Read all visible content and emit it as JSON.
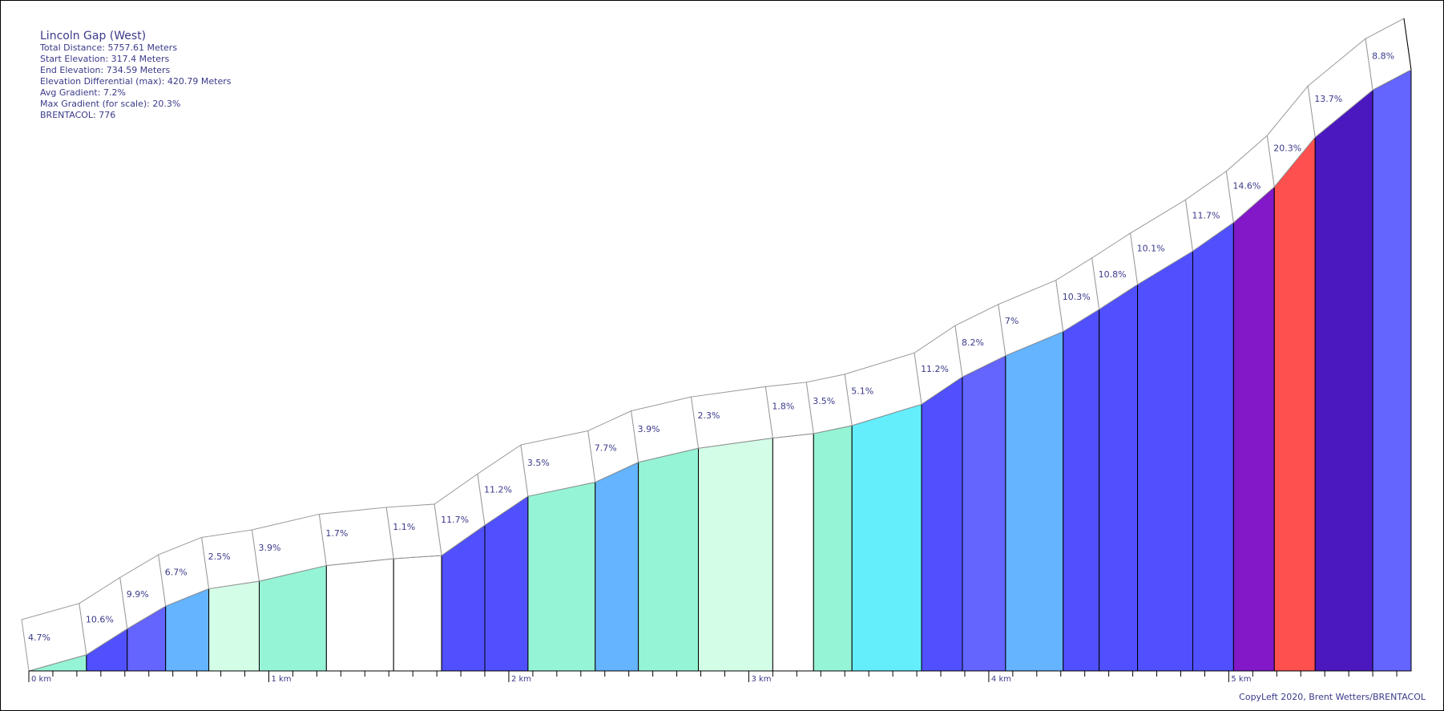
{
  "info": {
    "title": "Lincoln Gap (West)",
    "total_distance": "Total Distance: 5757.61 Meters",
    "start_elevation": "Start Elevation: 317.4 Meters",
    "end_elevation": "End Elevation: 734.59 Meters",
    "elevation_differential": "Elevation Differential (max): 420.79 Meters",
    "avg_gradient": "Avg Gradient: 7.2%",
    "max_gradient": "Max Gradient (for scale): 20.3%",
    "brentacol": "BRENTACOL: 776"
  },
  "credit": "CopyLeft 2020, Brent Wetters/BRENTACOL",
  "chart_data": {
    "type": "area",
    "x_unit": "km",
    "xlim": [
      0,
      5.76
    ],
    "ylim": [
      317.4,
      734.59
    ],
    "x_ticks": [
      0,
      1,
      2,
      3,
      4,
      5
    ],
    "x_tick_labels": [
      "0 km",
      "1 km",
      "2 km",
      "3 km",
      "4 km",
      "5 km"
    ],
    "segments": [
      {
        "start_km": 0.0,
        "end_km": 0.24,
        "gradient": 4.7,
        "label": "4.7%",
        "color": "#96f4d6"
      },
      {
        "start_km": 0.24,
        "end_km": 0.41,
        "gradient": 10.6,
        "label": "10.6%",
        "color": "#5050ff"
      },
      {
        "start_km": 0.41,
        "end_km": 0.57,
        "gradient": 9.9,
        "label": "9.9%",
        "color": "#6464ff"
      },
      {
        "start_km": 0.57,
        "end_km": 0.75,
        "gradient": 6.7,
        "label": "6.7%",
        "color": "#64b4ff"
      },
      {
        "start_km": 0.75,
        "end_km": 0.96,
        "gradient": 2.5,
        "label": "2.5%",
        "color": "#d4fde8"
      },
      {
        "start_km": 0.96,
        "end_km": 1.24,
        "gradient": 3.9,
        "label": "3.9%",
        "color": "#96f4d6"
      },
      {
        "start_km": 1.24,
        "end_km": 1.52,
        "gradient": 1.7,
        "label": "1.7%",
        "color": "#ffffff"
      },
      {
        "start_km": 1.52,
        "end_km": 1.72,
        "gradient": 1.1,
        "label": "1.1%",
        "color": "#ffffff"
      },
      {
        "start_km": 1.72,
        "end_km": 1.9,
        "gradient": 11.7,
        "label": "11.7%",
        "color": "#5050ff"
      },
      {
        "start_km": 1.9,
        "end_km": 2.08,
        "gradient": 11.2,
        "label": "11.2%",
        "color": "#5050ff"
      },
      {
        "start_km": 2.08,
        "end_km": 2.36,
        "gradient": 3.5,
        "label": "3.5%",
        "color": "#96f4d6"
      },
      {
        "start_km": 2.36,
        "end_km": 2.54,
        "gradient": 7.7,
        "label": "7.7%",
        "color": "#64b4ff"
      },
      {
        "start_km": 2.54,
        "end_km": 2.79,
        "gradient": 3.9,
        "label": "3.9%",
        "color": "#96f4d6"
      },
      {
        "start_km": 2.79,
        "end_km": 3.1,
        "gradient": 2.3,
        "label": "2.3%",
        "color": "#d4fde8"
      },
      {
        "start_km": 3.1,
        "end_km": 3.27,
        "gradient": 1.8,
        "label": "1.8%",
        "color": "#ffffff"
      },
      {
        "start_km": 3.27,
        "end_km": 3.43,
        "gradient": 3.5,
        "label": "3.5%",
        "color": "#96f4d6"
      },
      {
        "start_km": 3.43,
        "end_km": 3.72,
        "gradient": 5.1,
        "label": "5.1%",
        "color": "#64eefc"
      },
      {
        "start_km": 3.72,
        "end_km": 3.89,
        "gradient": 11.2,
        "label": "11.2%",
        "color": "#5050ff"
      },
      {
        "start_km": 3.89,
        "end_km": 4.07,
        "gradient": 8.2,
        "label": "8.2%",
        "color": "#6464ff"
      },
      {
        "start_km": 4.07,
        "end_km": 4.31,
        "gradient": 7,
        "label": "7%",
        "color": "#64b4ff"
      },
      {
        "start_km": 4.31,
        "end_km": 4.46,
        "gradient": 10.3,
        "label": "10.3%",
        "color": "#5050ff"
      },
      {
        "start_km": 4.46,
        "end_km": 4.62,
        "gradient": 10.8,
        "label": "10.8%",
        "color": "#5050ff"
      },
      {
        "start_km": 4.62,
        "end_km": 4.85,
        "gradient": 10.1,
        "label": "10.1%",
        "color": "#5050ff"
      },
      {
        "start_km": 4.85,
        "end_km": 5.02,
        "gradient": 11.7,
        "label": "11.7%",
        "color": "#5050ff"
      },
      {
        "start_km": 5.02,
        "end_km": 5.19,
        "gradient": 14.6,
        "label": "14.6%",
        "color": "#8218c8"
      },
      {
        "start_km": 5.19,
        "end_km": 5.36,
        "gradient": 20.3,
        "label": "20.3%",
        "color": "#ff5050"
      },
      {
        "start_km": 5.36,
        "end_km": 5.6,
        "gradient": 13.7,
        "label": "13.7%",
        "color": "#4b18c0"
      },
      {
        "start_km": 5.6,
        "end_km": 5.76,
        "gradient": 8.8,
        "label": "8.8%",
        "color": "#6464ff"
      }
    ]
  }
}
